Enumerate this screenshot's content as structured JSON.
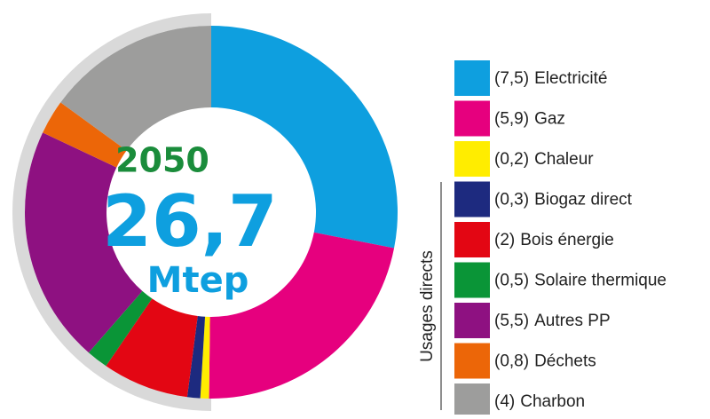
{
  "chart_data": {
    "type": "donut",
    "categories": [
      "Electricité",
      "Gaz",
      "Chaleur",
      "Biogaz direct",
      "Bois énergie",
      "Solaire thermique",
      "Autres PP",
      "Déchets",
      "Charbon"
    ],
    "values": [
      7.5,
      5.9,
      0.2,
      0.3,
      2,
      0.5,
      5.5,
      0.8,
      4
    ],
    "value_labels": [
      "(7,5)",
      "(5,9)",
      "(0,2)",
      "(0,3)",
      "(2)",
      "(0,5)",
      "(5,5)",
      "(0,8)",
      "(4)"
    ],
    "colors": [
      "#0e9fdf",
      "#e6007e",
      "#ffed00",
      "#1d2a7f",
      "#e30613",
      "#0a9537",
      "#8e1181",
      "#ec6608",
      "#9d9d9c"
    ],
    "year": "2050",
    "total": "26,7",
    "unit": "Mtep",
    "group_label": "Usages directs"
  }
}
